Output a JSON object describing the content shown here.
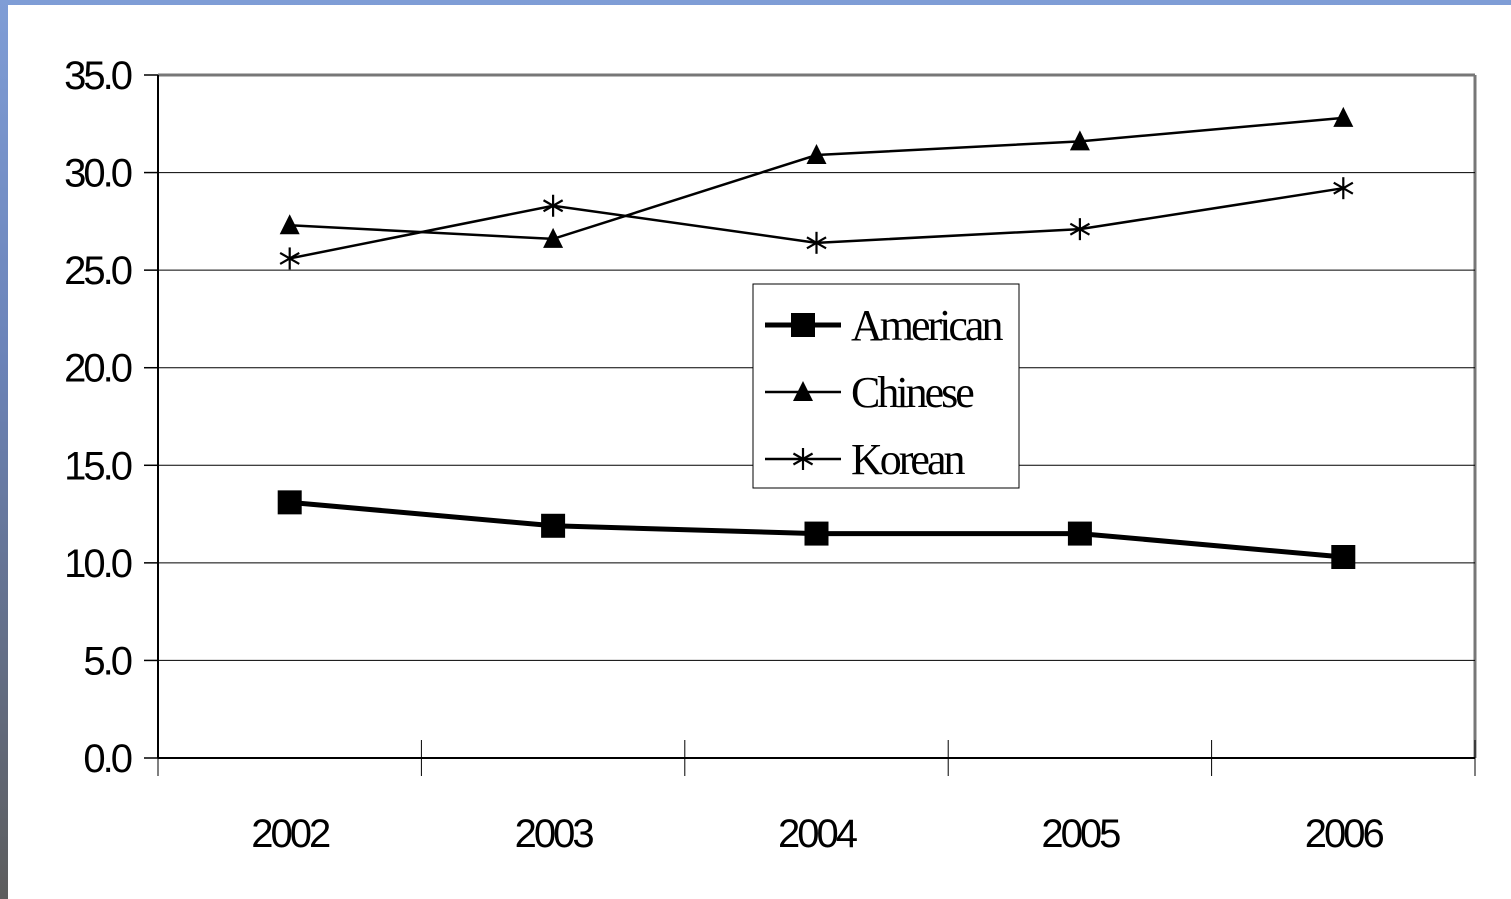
{
  "chart_data": {
    "type": "line",
    "title": "",
    "xlabel": "",
    "ylabel": "",
    "categories": [
      "2002",
      "2003",
      "2004",
      "2005",
      "2006"
    ],
    "ylim": [
      0,
      35
    ],
    "y_ticks": [
      "0.0",
      "5.0",
      "10.0",
      "15.0",
      "20.0",
      "25.0",
      "30.0",
      "35.0"
    ],
    "grid": true,
    "legend_position": "center",
    "series": [
      {
        "name": "American",
        "marker": "square",
        "values": [
          13.1,
          11.9,
          11.5,
          11.5,
          10.3
        ]
      },
      {
        "name": "Chinese",
        "marker": "triangle",
        "values": [
          27.3,
          26.6,
          30.9,
          31.6,
          32.8
        ]
      },
      {
        "name": "Korean",
        "marker": "star",
        "values": [
          25.6,
          28.3,
          26.4,
          27.1,
          29.2
        ]
      }
    ]
  }
}
